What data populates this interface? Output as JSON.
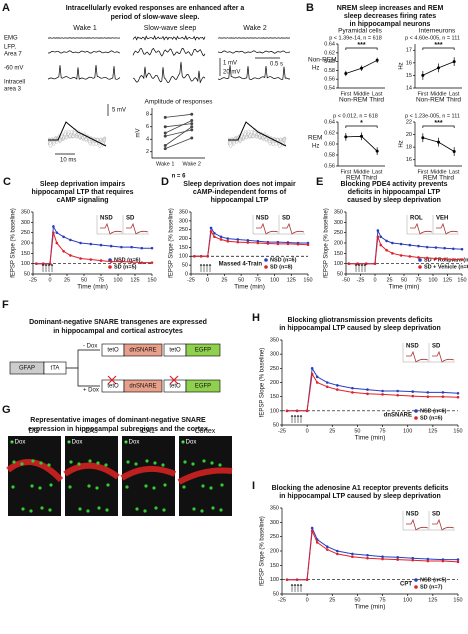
{
  "panel_a": {
    "panel": "A",
    "title": [
      "Intracellularly evoked responses are enhanced after a",
      "period of slow-wave sleep."
    ],
    "conditions": [
      "Wake 1",
      "Slow-wave sleep",
      "Wake 2"
    ],
    "trace_labels": [
      "EMG",
      "LFP,",
      "Area 7",
      "-60 mV",
      "Intracell",
      "area 3"
    ],
    "scale_bars": [
      "1 mV",
      "20 mV",
      "0.5 s",
      "5 mV",
      "10 ms"
    ]
  },
  "panel_b": {
    "panel": "B",
    "title": [
      "NREM sleep increases and REM",
      "sleep decreases firing rates",
      "in hippocampal neurons"
    ],
    "columns": [
      "Pyramidal cells",
      "Interneurons"
    ],
    "rows": [
      "Non-REM",
      "REM"
    ],
    "unit": "Hz"
  },
  "chart_data": [
    {
      "type": "line",
      "title": [
        "Amplitude of responses"
      ],
      "categories": [
        "Wake 1",
        "Wake 2"
      ],
      "series": [
        {
          "color": "#444",
          "values": [
            3,
            6
          ]
        },
        {
          "color": "#444",
          "values": [
            4.5,
            5.5
          ]
        },
        {
          "color": "#444",
          "values": [
            5,
            7
          ]
        },
        {
          "color": "#444",
          "values": [
            6,
            6.5
          ]
        },
        {
          "color": "#444",
          "values": [
            7.5,
            8
          ]
        },
        {
          "color": "#444",
          "values": [
            2.5,
            4.2
          ]
        }
      ],
      "ylim": [
        1,
        9
      ],
      "yticks": [
        2,
        4,
        6,
        8
      ],
      "ylabel": "mV",
      "annotation": "n = 6"
    },
    {
      "type": "line",
      "stats": "p < 1.39e-14, n = 618",
      "significance": "***",
      "categories": [
        "First",
        "Middle",
        "Last"
      ],
      "xlabel": "Non-REM Third",
      "series": [
        {
          "color": "#000",
          "values": [
            0.573,
            0.585,
            0.603
          ],
          "errors": [
            0.006,
            0.006,
            0.006
          ]
        }
      ],
      "ylim": [
        0.54,
        0.64
      ],
      "yticks": [
        0.54,
        0.56,
        0.58,
        {
          "value": 0.6,
          "label": "0.60"
        },
        0.62,
        0.64
      ]
    },
    {
      "type": "line",
      "stats": "p < 4.60e-005, n = 111",
      "significance": "***",
      "categories": [
        "First",
        "Middle",
        "Last"
      ],
      "xlabel": "Non-REM Third",
      "ylabel": "Hz",
      "series": [
        {
          "color": "#000",
          "values": [
            15.0,
            15.6,
            16.1
          ],
          "errors": [
            0.35,
            0.35,
            0.35
          ]
        }
      ],
      "ylim": [
        14,
        17.5
      ],
      "yticks": [
        14,
        15,
        16,
        17
      ]
    },
    {
      "type": "line",
      "stats": "p < 0.012, n = 618",
      "significance": "*",
      "categories": [
        "First",
        "Middle",
        "Last"
      ],
      "xlabel": "REM Third",
      "series": [
        {
          "color": "#000",
          "values": [
            0.613,
            0.614,
            0.587
          ],
          "errors": [
            0.007,
            0.007,
            0.007
          ]
        }
      ],
      "ylim": [
        0.56,
        0.64
      ],
      "yticks": [
        0.56,
        0.58,
        {
          "value": 0.6,
          "label": "0.60"
        },
        0.62,
        0.64
      ]
    },
    {
      "type": "line",
      "stats": "p < 1.23e-005, n = 111",
      "significance": "***",
      "categories": [
        "First",
        "Middle",
        "Last"
      ],
      "xlabel": "REM Third",
      "ylabel": "Hz",
      "series": [
        {
          "color": "#000",
          "values": [
            19.5,
            18.8,
            17.3
          ],
          "errors": [
            0.7,
            0.7,
            0.7
          ]
        }
      ],
      "ylim": [
        15,
        22
      ],
      "yticks": [
        16,
        18,
        20,
        22
      ]
    },
    {
      "type": "line",
      "panel": "C",
      "title": [
        "Sleep deprivation impairs",
        "hippocampal LTP that requires",
        "cAMP signaling"
      ],
      "x": [
        -20,
        -10,
        0,
        5,
        10,
        20,
        30,
        45,
        60,
        75,
        90,
        105,
        120,
        135,
        150
      ],
      "series": [
        {
          "name": "NSD (n=6)",
          "color": "#2a3fbf",
          "values": [
            100,
            100,
            100,
            280,
            250,
            230,
            215,
            200,
            195,
            190,
            185,
            180,
            180,
            175,
            175
          ]
        },
        {
          "name": "SD (n=5)",
          "color": "#e0202a",
          "values": [
            100,
            100,
            100,
            250,
            200,
            160,
            140,
            125,
            120,
            115,
            110,
            110,
            108,
            105,
            105
          ]
        }
      ],
      "xlim": [
        -25,
        150
      ],
      "xticks": [
        -25,
        0,
        25,
        50,
        75,
        100,
        125,
        150
      ],
      "ylim": [
        50,
        350
      ],
      "yticks": [
        50,
        100,
        150,
        200,
        250,
        300,
        350
      ],
      "xlabel": "Time (min)",
      "ylabel": "fEPSP Slope (% baseline)",
      "hline": 100,
      "insets": [
        "NSD",
        "SD"
      ]
    },
    {
      "type": "line",
      "panel": "D",
      "title": [
        "Sleep deprivation does not impair",
        "cAMP-independent forms of",
        "hippocampal LTP"
      ],
      "x": [
        -20,
        -10,
        0,
        5,
        10,
        20,
        30,
        45,
        60,
        75,
        90,
        105,
        120,
        135,
        150
      ],
      "series": [
        {
          "name": "NSD (n=6)",
          "color": "#2a3fbf",
          "values": [
            100,
            100,
            100,
            260,
            230,
            210,
            200,
            195,
            190,
            185,
            180,
            180,
            178,
            175,
            175
          ]
        },
        {
          "name": "SD (n=8)",
          "color": "#e0202a",
          "values": [
            100,
            100,
            100,
            240,
            210,
            195,
            185,
            180,
            178,
            175,
            172,
            170,
            170,
            168,
            165
          ]
        }
      ],
      "xlim": [
        -25,
        150
      ],
      "xticks": [
        -25,
        0,
        25,
        50,
        75,
        100,
        125,
        150
      ],
      "ylim": [
        0,
        350
      ],
      "yticks": [
        0,
        50,
        100,
        150,
        200,
        250,
        300,
        350
      ],
      "xlabel": "Time (min)",
      "ylabel": "fEPSP Slope (% baseline)",
      "hline": 100,
      "insets": [
        "NSD",
        "SD"
      ],
      "annotation": "Massed 4-Train"
    },
    {
      "type": "line",
      "panel": "E",
      "title": [
        "Blocking PDE4 activity prevents",
        "deficits in hippocampal LTP",
        "caused by sleep deprivation"
      ],
      "x": [
        -45,
        -30,
        -15,
        0,
        5,
        10,
        20,
        30,
        45,
        60,
        75,
        90,
        105,
        120,
        135,
        150
      ],
      "series": [
        {
          "name": "SD + Rolipram (n=6)",
          "color": "#2a3fbf",
          "values": [
            100,
            100,
            100,
            100,
            260,
            230,
            210,
            200,
            195,
            190,
            185,
            180,
            178,
            175,
            172,
            170
          ]
        },
        {
          "name": "SD + Vehicle (n=6)",
          "color": "#e0202a",
          "values": [
            100,
            100,
            100,
            100,
            230,
            190,
            165,
            150,
            140,
            135,
            130,
            128,
            125,
            123,
            120,
            120
          ]
        }
      ],
      "xlim": [
        -50,
        150
      ],
      "xticks": [
        -50,
        -25,
        0,
        25,
        50,
        75,
        100,
        125,
        150
      ],
      "ylim": [
        50,
        350
      ],
      "yticks": [
        50,
        100,
        150,
        200,
        250,
        300,
        350
      ],
      "xlabel": "Time (min)",
      "ylabel": "fEPSP Slope (% baseline)",
      "hline": 100,
      "insets": [
        "ROL",
        "VEH"
      ]
    },
    {
      "type": "line",
      "panel": "H",
      "title": [
        "Blocking gliotransmission prevents deficits",
        "in hippocampal LTP caused by sleep deprivation"
      ],
      "x": [
        -20,
        -10,
        0,
        5,
        10,
        20,
        30,
        45,
        60,
        75,
        90,
        105,
        120,
        135,
        150
      ],
      "series": [
        {
          "name": "NSD (n=6)",
          "color": "#2a3fbf",
          "values": [
            100,
            100,
            100,
            250,
            220,
            200,
            190,
            180,
            175,
            170,
            170,
            168,
            165,
            165,
            162
          ]
        },
        {
          "name": "SD (n=6)",
          "color": "#e0202a",
          "values": [
            100,
            100,
            100,
            230,
            200,
            185,
            175,
            165,
            160,
            158,
            155,
            152,
            150,
            150,
            148
          ]
        }
      ],
      "xlim": [
        -25,
        150
      ],
      "xticks": [
        -25,
        0,
        25,
        50,
        75,
        100,
        125,
        150
      ],
      "ylim": [
        50,
        350
      ],
      "yticks": [
        50,
        100,
        150,
        200,
        250,
        300,
        350
      ],
      "xlabel": "Time (min)",
      "ylabel": "fEPSP Slope (% baseline)",
      "hline": 100,
      "insets": [
        "NSD",
        "SD"
      ],
      "annotation": "dnSNARE"
    },
    {
      "type": "line",
      "panel": "I",
      "title": [
        "Blocking the adenosine A1 receptor prevents deficits",
        "in hippocampal LTP caused by sleep deprivation"
      ],
      "x": [
        -20,
        -10,
        0,
        5,
        10,
        20,
        30,
        45,
        60,
        75,
        90,
        105,
        120,
        135,
        150
      ],
      "series": [
        {
          "name": "NSD (n=5)",
          "color": "#2a3fbf",
          "values": [
            100,
            100,
            100,
            280,
            240,
            215,
            200,
            190,
            185,
            180,
            178,
            175,
            172,
            170,
            170
          ]
        },
        {
          "name": "SD (n=7)",
          "color": "#e0202a",
          "values": [
            100,
            100,
            100,
            270,
            230,
            205,
            190,
            180,
            175,
            172,
            170,
            168,
            165,
            165,
            162
          ]
        }
      ],
      "xlim": [
        -25,
        150
      ],
      "xticks": [
        -25,
        0,
        25,
        50,
        75,
        100,
        125,
        150
      ],
      "ylim": [
        50,
        350
      ],
      "yticks": [
        50,
        100,
        150,
        200,
        250,
        300,
        350
      ],
      "xlabel": "Time (min)",
      "ylabel": "fEPSP Slope (% baseline)",
      "hline": 100,
      "insets": [
        "NSD",
        "SD"
      ],
      "annotation": "CPT"
    }
  ],
  "panel_f": {
    "panel": "F",
    "title": [
      "Dominant-negative SNARE transgenes are expressed",
      "in hippocampal and cortical astrocytes"
    ],
    "promoter": "GFAP",
    "driver": "tTA",
    "minus": "- Dox",
    "plus": "+ Dox",
    "operator": "tetO",
    "transgene": "dnSNARE",
    "reporter": "EGFP"
  },
  "panel_g": {
    "panel": "G",
    "title": [
      "Representative images of dominant-negative SNARE",
      "expression in hippocampal subregions and the cortex"
    ],
    "regions": [
      "DG",
      "CA3",
      "CA1",
      "Cortex"
    ],
    "condition": "- Dox"
  }
}
